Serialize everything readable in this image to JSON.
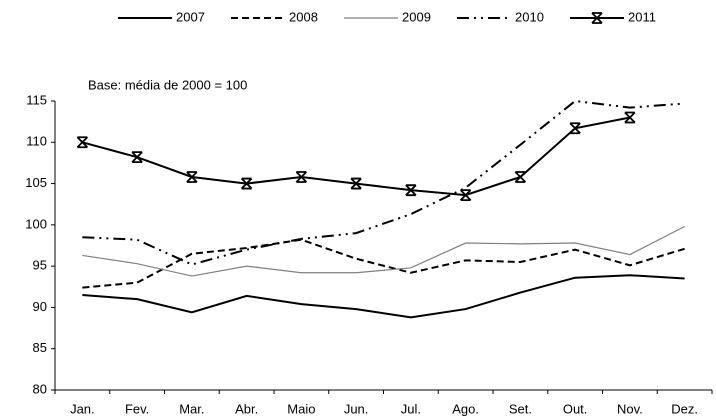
{
  "chart_data": {
    "type": "line",
    "annotation": "Base: média de  2000 = 100",
    "categories": [
      "Jan.",
      "Fev.",
      "Mar.",
      "Abr.",
      "Maio",
      "Jun.",
      "Jul.",
      "Ago.",
      "Set.",
      "Out.",
      "Nov.",
      "Dez."
    ],
    "series": [
      {
        "name": "2007",
        "color": "#000000",
        "dash": "solid",
        "marker": "none",
        "values": [
          91.5,
          91,
          89.4,
          91.4,
          90.4,
          89.8,
          88.8,
          89.8,
          91.8,
          93.6,
          93.9,
          93.5
        ]
      },
      {
        "name": "2008",
        "color": "#000000",
        "dash": "dashed",
        "marker": "none",
        "values": [
          92.4,
          93,
          96.5,
          97.2,
          98.2,
          95.9,
          94.2,
          95.7,
          95.5,
          97,
          95.1,
          97.1
        ]
      },
      {
        "name": "2009",
        "color": "#808080",
        "dash": "solid",
        "marker": "none",
        "values": [
          96.3,
          95.3,
          93.8,
          95,
          94.2,
          94.2,
          94.8,
          97.8,
          97.7,
          97.8,
          96.4,
          99.8
        ]
      },
      {
        "name": "2010",
        "color": "#000000",
        "dash": "dash-dot-dot",
        "marker": "none",
        "values": [
          98.5,
          98.2,
          95.2,
          97,
          98.3,
          99,
          101.3,
          104.5,
          109.7,
          115,
          114.2,
          114.7
        ]
      },
      {
        "name": "2011",
        "color": "#000000",
        "dash": "solid",
        "marker": "x",
        "values": [
          110,
          108.2,
          105.8,
          105,
          105.8,
          105,
          104.2,
          103.6,
          105.8,
          111.7,
          113,
          null
        ]
      }
    ],
    "ylim": [
      80,
      115
    ],
    "yticks": [
      80,
      85,
      90,
      95,
      100,
      105,
      110,
      115
    ],
    "grid": false,
    "legend": "top"
  }
}
